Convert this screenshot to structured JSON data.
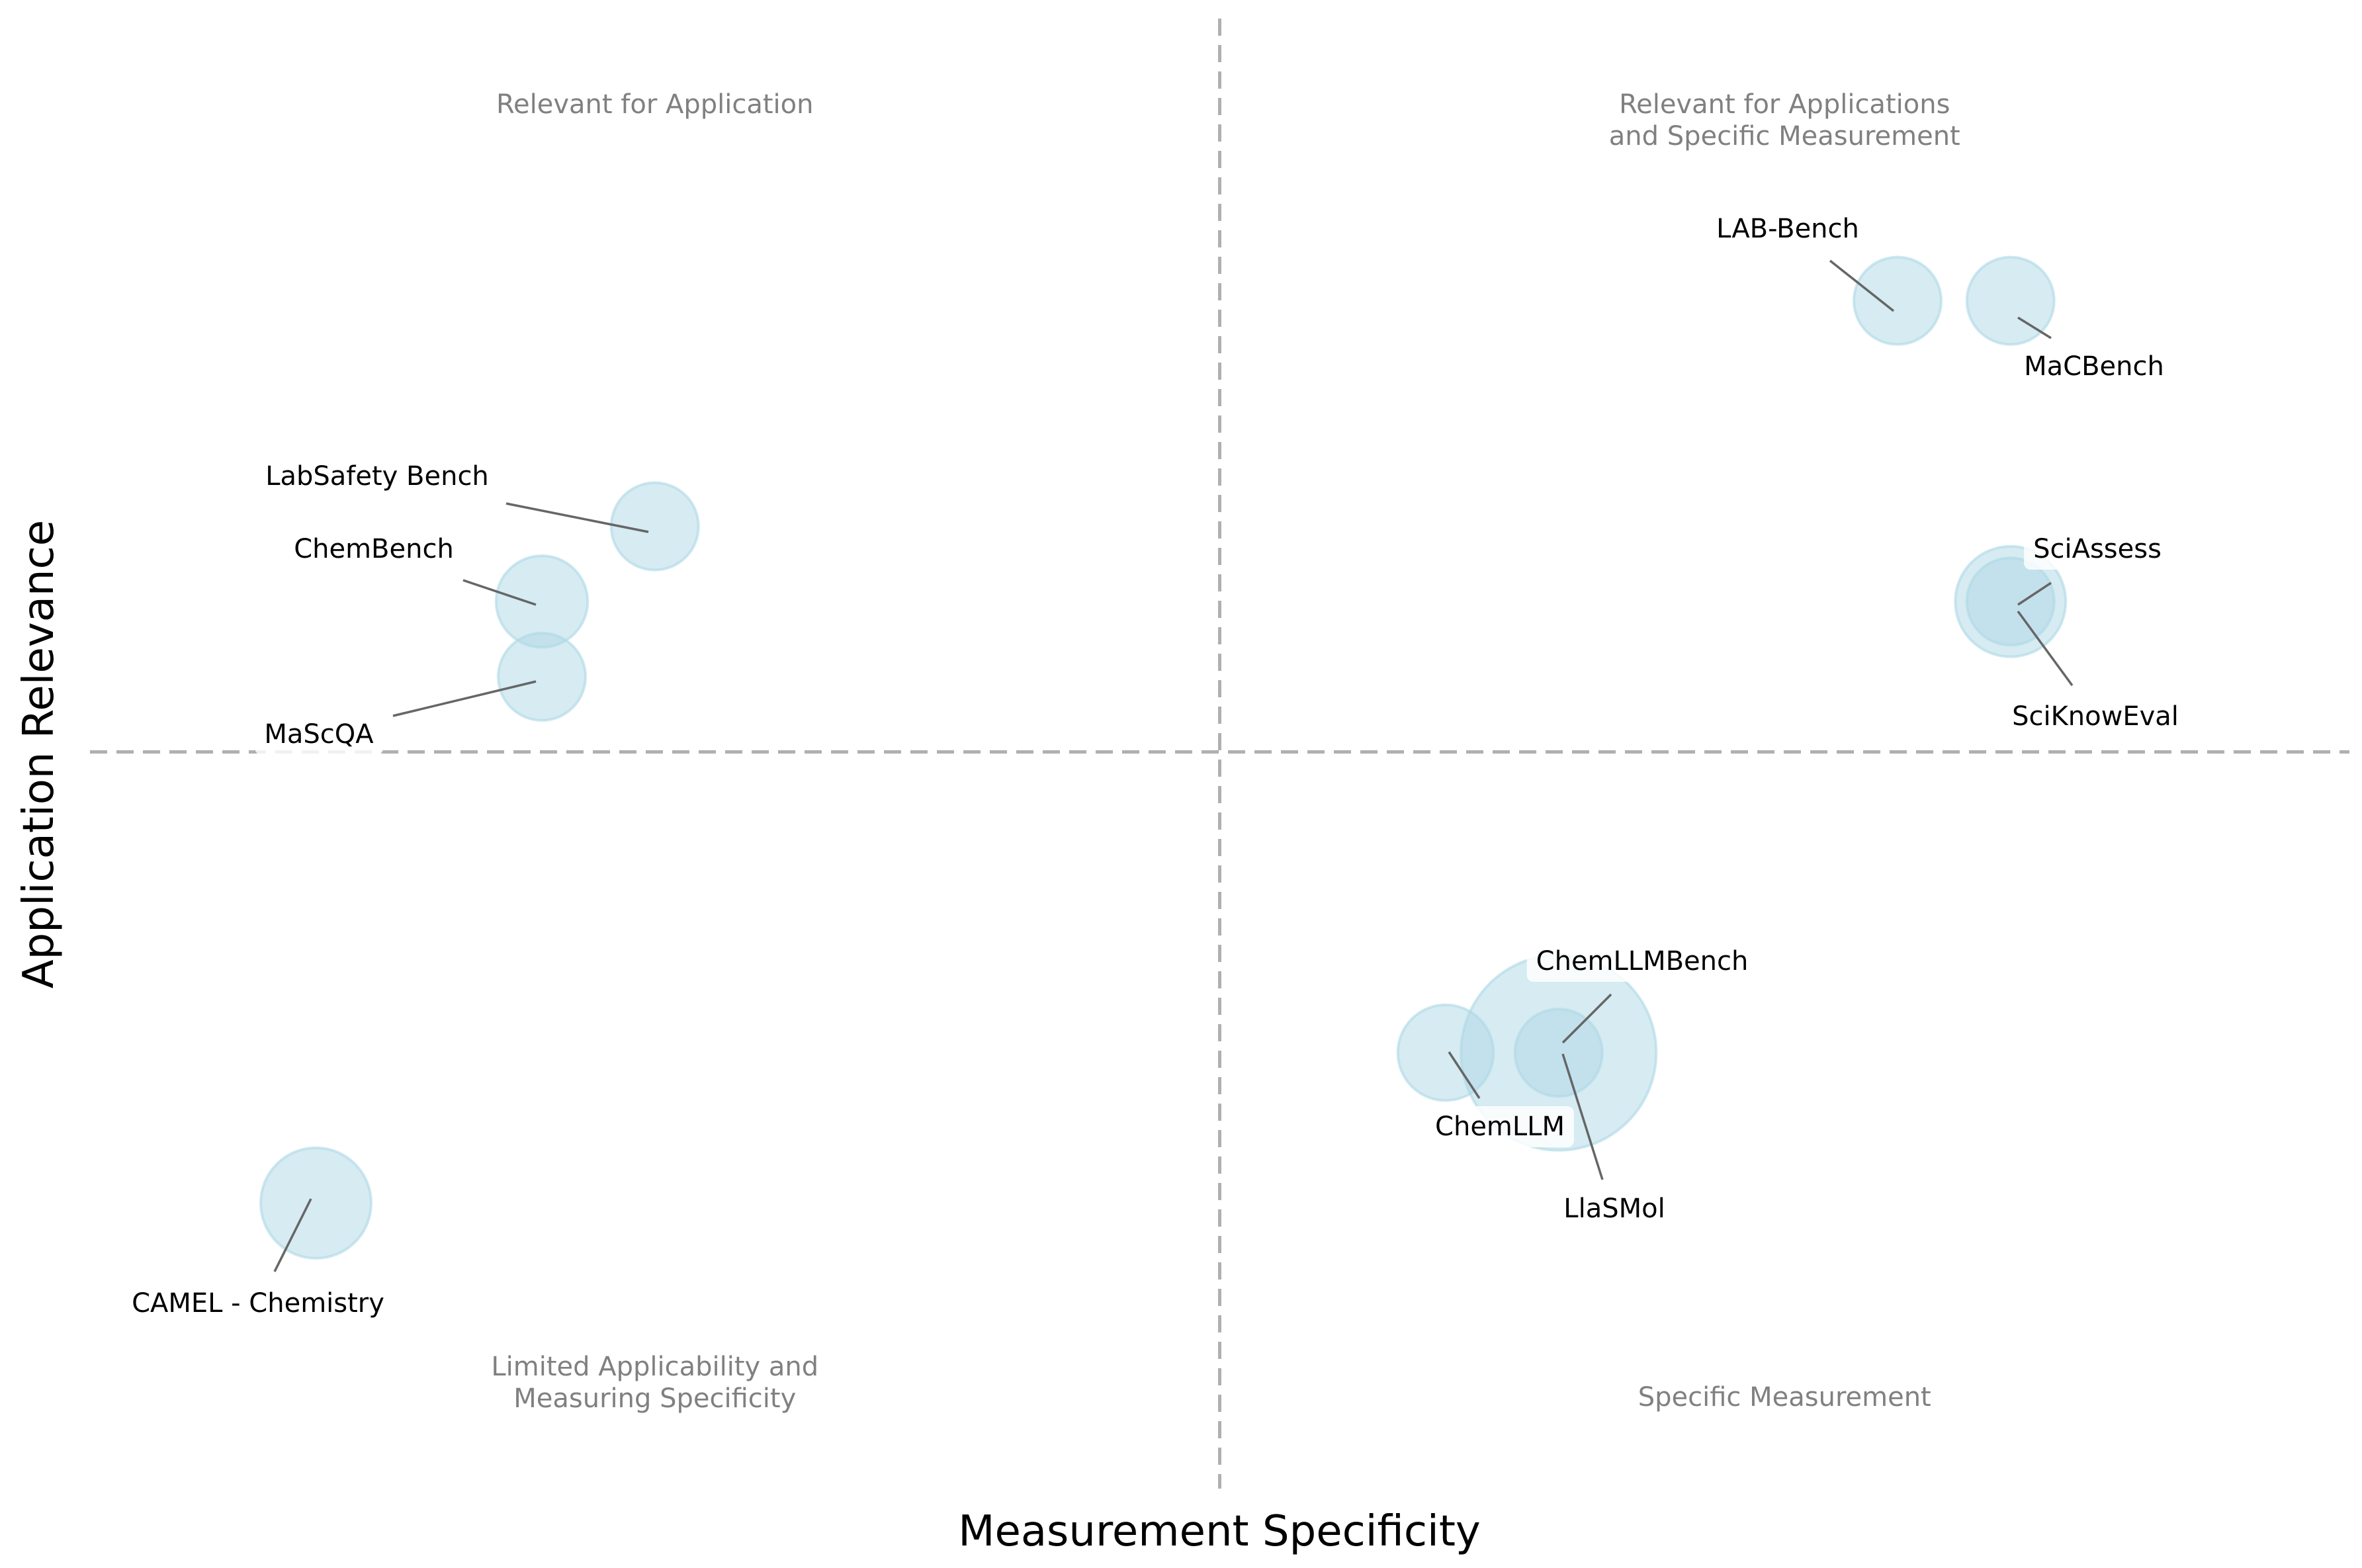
{
  "chart_data": {
    "type": "scatter",
    "xlabel": "Measurement Specificity",
    "ylabel": "Application Relevance",
    "xlim": [
      0,
      1
    ],
    "ylim": [
      0,
      1
    ],
    "grid": false,
    "quadrants": {
      "top_left": [
        "Relevant for Application"
      ],
      "top_right": [
        "Relevant for Applications",
        "and Specific Measurement"
      ],
      "bottom_left": [
        "Limited Applicability and",
        "Measuring Specificity"
      ],
      "bottom_right": [
        "Specific Measurement"
      ]
    },
    "points": [
      {
        "label": "LAB-Bench",
        "x": 0.8,
        "y": 0.8,
        "size": 1
      },
      {
        "label": "MaCBench",
        "x": 0.85,
        "y": 0.8,
        "size": 1
      },
      {
        "label": "LabSafety Bench",
        "x": 0.25,
        "y": 0.65,
        "size": 1
      },
      {
        "label": "ChemBench",
        "x": 0.2,
        "y": 0.6,
        "size": 1.1
      },
      {
        "label": "MaScQA",
        "x": 0.2,
        "y": 0.55,
        "size": 1
      },
      {
        "label": "SciAssess",
        "x": 0.85,
        "y": 0.6,
        "size": 1.6
      },
      {
        "label": "SciKnowEval",
        "x": 0.85,
        "y": 0.6,
        "size": 1
      },
      {
        "label": "ChemLLMBench",
        "x": 0.65,
        "y": 0.3,
        "size": 5
      },
      {
        "label": "ChemLLM",
        "x": 0.6,
        "y": 0.3,
        "size": 1.2
      },
      {
        "label": "LlaSMol",
        "x": 0.65,
        "y": 0.3,
        "size": 1
      },
      {
        "label": "CAMEL - Chemistry",
        "x": 0.1,
        "y": 0.2,
        "size": 1.6
      }
    ]
  }
}
